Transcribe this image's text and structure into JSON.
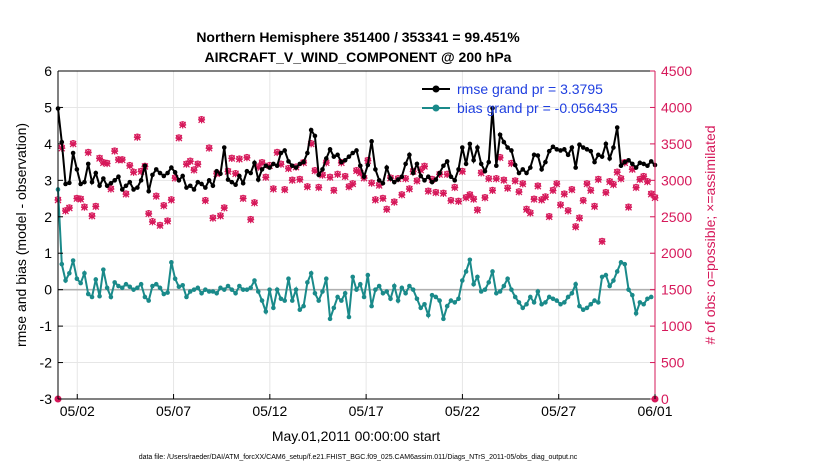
{
  "chart_data": {
    "type": "line",
    "title_line1": "Northern Hemisphere 351400 / 353341 = 99.451%",
    "title_line2": "AIRCRAFT_V_WIND_COMPONENT @ 200 hPa",
    "xlabel": "May.01,2011 00:00:00 start",
    "ylabel_left": "rmse and bias (model - observation)",
    "ylabel_right": "# of obs: o=possible; ×=assimilated",
    "footnote": "data file: /Users/raeder/DAI/ATM_forcXX/CAM6_setup/f.e21.FHIST_BGC.f09_025.CAM6assim.011/Diags_NTrS_2011-05/obs_diag_output.nc",
    "x_ticks": [
      "05/02",
      "05/07",
      "05/12",
      "05/17",
      "05/22",
      "05/27",
      "06/01"
    ],
    "x_tick_days": [
      1,
      6,
      11,
      16,
      21,
      26,
      31
    ],
    "xlim": [
      0,
      31
    ],
    "ylim_left": [
      -3,
      6
    ],
    "yticks_left": [
      "-3",
      "-2",
      "-1",
      "0",
      "1",
      "2",
      "3",
      "4",
      "5",
      "6"
    ],
    "ylim_right": [
      0,
      4500
    ],
    "yticks_right": [
      "0",
      "500",
      "1000",
      "1500",
      "2000",
      "2500",
      "3000",
      "3500",
      "4000",
      "4500"
    ],
    "colors": {
      "rmse": "#000000",
      "bias": "#1a8a8a",
      "obs": "#d6185a",
      "zero": "#b0b0b0",
      "legend_text": "#1f3fe0"
    },
    "legend": [
      {
        "name": "rmse grand pr = 3.3795"
      },
      {
        "name": "bias grand pr = -0.056435"
      }
    ],
    "series": [
      {
        "name": "rmse",
        "axis": "left",
        "values": [
          4.97,
          4.05,
          2.9,
          2.93,
          3.75,
          3.3,
          2.9,
          2.95,
          3.45,
          2.95,
          3.2,
          2.85,
          3.05,
          2.85,
          2.92,
          3.0,
          3.1,
          2.75,
          2.85,
          2.95,
          2.75,
          2.8,
          3.0,
          3.4,
          2.7,
          3.15,
          3.3,
          3.2,
          3.12,
          3.2,
          3.35,
          3.22,
          3.0,
          3.12,
          2.8,
          2.85,
          2.75,
          2.95,
          2.9,
          2.8,
          3.0,
          2.85,
          3.25,
          3.18,
          3.9,
          3.02,
          2.95,
          2.88,
          3.12,
          2.92,
          3.25,
          3.2,
          3.48,
          3.02,
          3.3,
          3.4,
          3.35,
          3.45,
          3.4,
          3.75,
          3.82,
          3.52,
          3.4,
          3.35,
          3.45,
          3.5,
          3.75,
          4.38,
          4.22,
          3.15,
          3.3,
          3.6,
          3.85,
          3.65,
          3.7,
          3.5,
          3.55,
          3.65,
          3.75,
          3.82,
          3.4,
          3.1,
          3.42,
          4.07,
          3.3,
          3.0,
          2.92,
          3.35,
          3.05,
          2.95,
          3.02,
          3.1,
          3.45,
          3.7,
          3.2,
          3.45,
          3.12,
          3.0,
          3.1,
          2.95,
          3.02,
          3.2,
          3.4,
          3.52,
          3.1,
          3.0,
          3.3,
          3.9,
          3.45,
          4.0,
          3.55,
          3.9,
          3.45,
          3.25,
          3.5,
          4.98,
          3.4,
          4.25,
          4.05,
          3.9,
          3.82,
          3.42,
          3.2,
          3.3,
          3.2,
          3.35,
          3.7,
          3.68,
          3.3,
          3.5,
          3.8,
          3.92,
          3.85,
          3.82,
          3.85,
          3.7,
          3.9,
          3.35,
          3.98,
          3.9,
          3.85,
          3.8,
          3.5,
          3.7,
          3.65,
          4.0,
          3.6,
          3.9,
          4.45,
          3.4,
          3.5,
          3.55,
          3.45,
          3.35,
          3.48,
          3.45,
          3.4,
          3.52,
          3.42
        ]
      },
      {
        "name": "bias",
        "axis": "left",
        "values": [
          2.75,
          0.7,
          0.25,
          0.45,
          0.8,
          0.3,
          0.18,
          0.45,
          -0.12,
          -0.2,
          0.28,
          -0.18,
          0.55,
          0.05,
          -0.2,
          0.2,
          0.1,
          0.05,
          0.15,
          0.08,
          0.0,
          0.05,
          0.15,
          -0.2,
          -0.3,
          0.1,
          0.15,
          0.05,
          -0.12,
          -0.08,
          0.75,
          0.3,
          0.08,
          0.12,
          -0.2,
          -0.05,
          0.0,
          0.05,
          -0.1,
          0.0,
          -0.05,
          -0.05,
          -0.1,
          0.05,
          0.0,
          0.1,
          0.0,
          -0.1,
          0.1,
          0.0,
          0.0,
          0.05,
          0.25,
          -0.05,
          -0.3,
          -0.6,
          0.0,
          -0.5,
          0.0,
          -0.25,
          -0.3,
          0.3,
          -0.3,
          0.0,
          -0.55,
          -0.45,
          0.2,
          0.45,
          -0.1,
          -0.3,
          -0.05,
          0.3,
          -0.8,
          -0.5,
          -0.2,
          -0.3,
          -0.1,
          -0.75,
          0.35,
          0.0,
          0.15,
          -0.2,
          0.4,
          -0.45,
          0.0,
          0.1,
          -0.1,
          -0.05,
          -0.25,
          0.1,
          -0.3,
          0.05,
          -0.1,
          0.1,
          0.0,
          -0.25,
          -0.5,
          -0.4,
          -0.7,
          -0.15,
          -0.2,
          -0.3,
          -0.8,
          -0.45,
          -0.3,
          -0.35,
          -0.25,
          0.25,
          0.5,
          0.82,
          0.15,
          0.35,
          -0.05,
          0.0,
          0.2,
          0.5,
          -0.1,
          -0.05,
          0.1,
          0.3,
          0.0,
          -0.2,
          -0.35,
          -0.5,
          -0.4,
          -0.2,
          -0.35,
          -0.05,
          -0.4,
          -0.35,
          -0.2,
          -0.25,
          -0.3,
          -0.4,
          -0.35,
          -0.2,
          -0.1,
          0.15,
          -0.45,
          -0.55,
          -0.5,
          -0.4,
          -0.3,
          -0.35,
          0.35,
          0.4,
          0.1,
          0.25,
          0.5,
          0.75,
          0.7,
          0.0,
          -0.15,
          -0.65,
          -0.35,
          -0.4,
          -0.25,
          -0.2
        ]
      },
      {
        "name": "obs_assimilated",
        "axis": "right",
        "values": [
          2730,
          3440,
          2580,
          2620,
          3500,
          2750,
          2740,
          2630,
          3380,
          2510,
          2640,
          3300,
          3240,
          3230,
          2880,
          3400,
          3280,
          3280,
          2810,
          3200,
          3110,
          3590,
          3120,
          3190,
          2540,
          2430,
          2780,
          2380,
          2650,
          2440,
          2730,
          3030,
          3580,
          3760,
          3220,
          3260,
          3140,
          3220,
          3830,
          2720,
          3440,
          2480,
          3090,
          2510,
          2620,
          3120,
          3300,
          3090,
          3290,
          2750,
          3310,
          2460,
          2690,
          3180,
          3240,
          3040,
          3200,
          2880,
          3380,
          3220,
          2870,
          3160,
          3000,
          3180,
          3010,
          3240,
          2910,
          3500,
          3130,
          2900,
          3070,
          3240,
          3040,
          2860,
          3080,
          3240,
          3050,
          2910,
          2950,
          3130,
          3100,
          3030,
          3270,
          2960,
          2730,
          2930,
          2750,
          2600,
          3030,
          2700,
          3020,
          2800,
          3020,
          2880,
          3120,
          2990,
          3140,
          3190,
          2850,
          3010,
          2830,
          3080,
          2820,
          3080,
          2720,
          2900,
          2710,
          3120,
          2760,
          2800,
          2740,
          2590,
          3100,
          2760,
          3020,
          2860,
          3020,
          3310,
          3000,
          2890,
          3230,
          2990,
          2840,
          2950,
          2600,
          2550,
          2740,
          2920,
          2730,
          2770,
          2500,
          2860,
          2950,
          2660,
          2810,
          2580,
          2870,
          2360,
          2480,
          2720,
          2950,
          2860,
          2640,
          3010,
          2160,
          2830,
          2980,
          2940,
          3110,
          3020,
          3240,
          2630,
          3150,
          2900,
          3010,
          3050,
          2980,
          2810,
          2760
        ]
      },
      {
        "name": "obs_possible",
        "axis": "right",
        "values": [
          2740,
          3460,
          2590,
          2630,
          3510,
          2760,
          2750,
          2640,
          3390,
          2520,
          2650,
          3310,
          3250,
          3240,
          2890,
          3410,
          3290,
          3290,
          2820,
          3210,
          3120,
          3600,
          3130,
          3200,
          2550,
          2440,
          2790,
          2390,
          2660,
          2450,
          2740,
          3040,
          3590,
          3770,
          3230,
          3270,
          3150,
          3230,
          3840,
          2730,
          3450,
          2490,
          3100,
          2520,
          2630,
          3130,
          3310,
          3100,
          3300,
          2760,
          3320,
          2470,
          2700,
          3190,
          3250,
          3050,
          3210,
          2890,
          3390,
          3230,
          2880,
          3170,
          3010,
          3190,
          3020,
          3250,
          2920,
          3510,
          3140,
          2910,
          3080,
          3250,
          3050,
          2870,
          3090,
          3250,
          3060,
          2920,
          2960,
          3140,
          3110,
          3040,
          3280,
          2970,
          2740,
          2940,
          2760,
          2610,
          3040,
          2710,
          3030,
          2810,
          3030,
          2890,
          3130,
          3000,
          3150,
          3200,
          2860,
          3020,
          2840,
          3090,
          2830,
          3090,
          2730,
          2910,
          2720,
          3130,
          2770,
          2810,
          2750,
          2600,
          3110,
          2770,
          3030,
          2870,
          3030,
          3320,
          3010,
          2900,
          3240,
          3000,
          2850,
          2960,
          2610,
          2560,
          2750,
          2930,
          2740,
          2780,
          2510,
          2870,
          2960,
          2670,
          2820,
          2590,
          2880,
          2370,
          2490,
          2730,
          2960,
          2870,
          2650,
          3020,
          2170,
          2840,
          2990,
          2950,
          3120,
          3030,
          3250,
          2640,
          3160,
          2910,
          3020,
          3060,
          2990,
          2820,
          2770
        ]
      }
    ]
  }
}
